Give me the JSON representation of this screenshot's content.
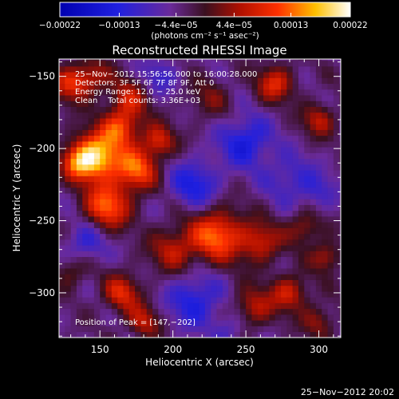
{
  "chart_data": {
    "type": "heatmap",
    "title": "Reconstructed RHESSI Image",
    "xlabel": "Heliocentric X (arcsec)",
    "ylabel": "Heliocentric Y (arcsec)",
    "xlim": [
      122,
      315
    ],
    "ylim": [
      -331,
      -138
    ],
    "x_ticks": [
      150,
      200,
      250,
      300
    ],
    "x_tick_labels": [
      "150",
      "200",
      "250",
      "300"
    ],
    "y_ticks": [
      -300,
      -250,
      -200,
      -150
    ],
    "y_tick_labels": [
      "−300",
      "−250",
      "−200",
      "−150"
    ],
    "colorbar": {
      "colormap": "blue-purple-red-yellow-white",
      "range": [
        -0.00022,
        0.00022
      ],
      "tick_values": [
        -0.00022,
        -0.00013,
        -4.4e-05,
        4.4e-05,
        0.00013,
        0.00022
      ],
      "tick_labels": [
        "−0.00022",
        "−0.00013",
        "−4.4e−05",
        "4.4e−05",
        "0.00013",
        "0.00022"
      ],
      "units": "(photons cm⁻² s⁻¹ asec⁻²)"
    },
    "annotations": [
      "25−Nov−2012 15:56:56.000 to 16:00:28.000",
      "Detectors: 3F 5F 6F 7F 8F 9F, Att 0",
      "Energy Range: 12.0 − 25.0 keV",
      "Clean    Total counts: 3.36E+03",
      "Position of Peak = [147,−202]"
    ],
    "peak": {
      "x": 147,
      "y": -202
    },
    "blobs": [
      {
        "x": 148,
        "y": -205,
        "a": 1.0,
        "s": 12
      },
      {
        "x": 165,
        "y": -185,
        "a": 0.6,
        "s": 9
      },
      {
        "x": 190,
        "y": -195,
        "a": 0.55,
        "s": 8
      },
      {
        "x": 175,
        "y": -215,
        "a": 0.7,
        "s": 10
      },
      {
        "x": 155,
        "y": -240,
        "a": 0.75,
        "s": 11
      },
      {
        "x": 135,
        "y": -210,
        "a": 0.5,
        "s": 8
      },
      {
        "x": 130,
        "y": -155,
        "a": 0.55,
        "s": 9
      },
      {
        "x": 170,
        "y": -165,
        "a": 0.45,
        "s": 10
      },
      {
        "x": 145,
        "y": -150,
        "a": 0.4,
        "s": 8
      },
      {
        "x": 270,
        "y": -155,
        "a": 0.55,
        "s": 9
      },
      {
        "x": 300,
        "y": -180,
        "a": 0.45,
        "s": 8
      },
      {
        "x": 225,
        "y": -165,
        "a": 0.25,
        "s": 10
      },
      {
        "x": 230,
        "y": -260,
        "a": 0.75,
        "s": 13
      },
      {
        "x": 260,
        "y": -265,
        "a": 0.5,
        "s": 10
      },
      {
        "x": 200,
        "y": -270,
        "a": 0.45,
        "s": 11
      },
      {
        "x": 290,
        "y": -255,
        "a": 0.4,
        "s": 8
      },
      {
        "x": 305,
        "y": -275,
        "a": 0.45,
        "s": 7
      },
      {
        "x": 165,
        "y": -300,
        "a": 0.55,
        "s": 9
      },
      {
        "x": 180,
        "y": -320,
        "a": 0.45,
        "s": 8
      },
      {
        "x": 255,
        "y": -310,
        "a": 0.45,
        "s": 10
      },
      {
        "x": 280,
        "y": -300,
        "a": 0.5,
        "s": 9
      },
      {
        "x": 300,
        "y": -320,
        "a": 0.35,
        "s": 8
      },
      {
        "x": 130,
        "y": -285,
        "a": 0.3,
        "s": 8
      },
      {
        "x": 215,
        "y": -225,
        "a": -0.45,
        "s": 12
      },
      {
        "x": 250,
        "y": -195,
        "a": -0.5,
        "s": 12
      },
      {
        "x": 215,
        "y": -305,
        "a": -0.45,
        "s": 13
      },
      {
        "x": 140,
        "y": -265,
        "a": -0.35,
        "s": 10
      },
      {
        "x": 280,
        "y": -220,
        "a": -0.3,
        "s": 12
      },
      {
        "x": 300,
        "y": -230,
        "a": -0.25,
        "s": 9
      },
      {
        "x": 190,
        "y": -150,
        "a": -0.3,
        "s": 9
      },
      {
        "x": 240,
        "y": -325,
        "a": -0.25,
        "s": 8
      }
    ]
  },
  "footer": {
    "timestamp": "25−Nov−2012 20:02"
  }
}
